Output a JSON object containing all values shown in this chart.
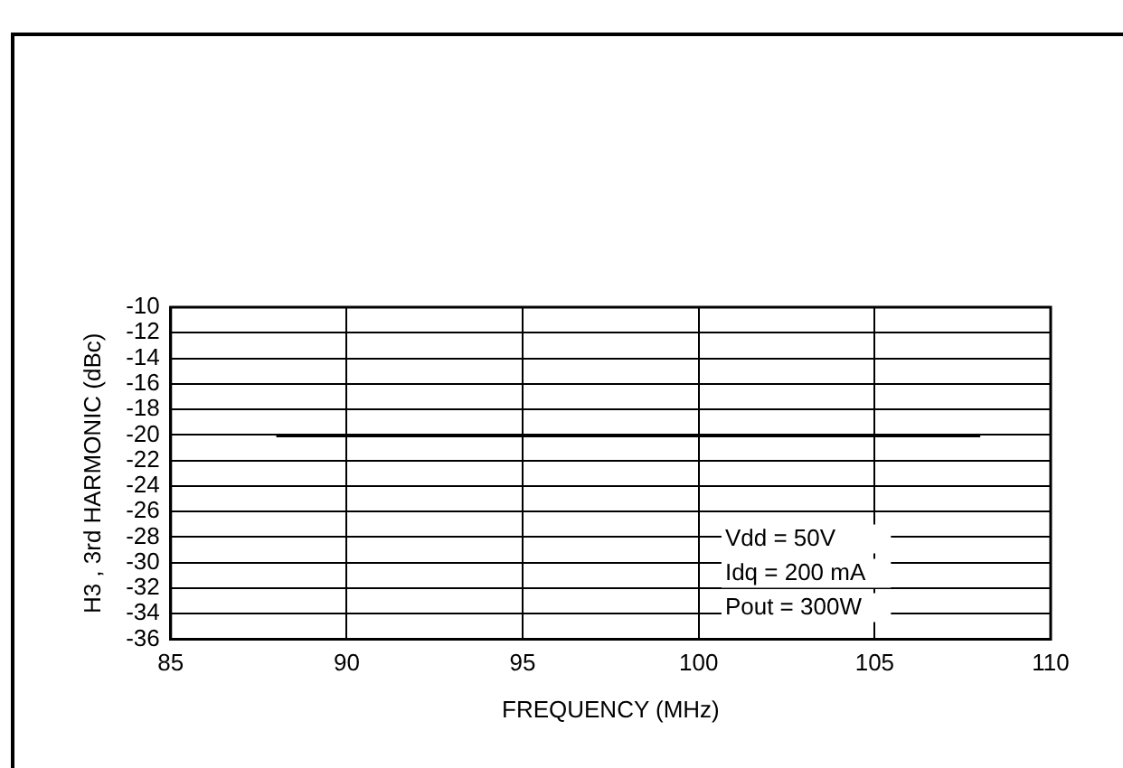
{
  "chart_data": {
    "type": "line",
    "xlabel": "FREQUENCY (MHz)",
    "ylabel": "H3 , 3rd HARMONIC (dBc)",
    "x": [
      88,
      108
    ],
    "series": [
      {
        "color": "#000000",
        "values": [
          -20.1,
          -20.1
        ]
      }
    ],
    "xlim": [
      85,
      110
    ],
    "xticks": [
      85,
      90,
      95,
      100,
      105,
      110
    ],
    "ylim": [
      -36,
      -10
    ],
    "yticks": [
      -36,
      -34,
      -32,
      -30,
      -28,
      -26,
      -24,
      -22,
      -20,
      -18,
      -16,
      -14,
      -12,
      -10
    ],
    "grid": true,
    "legend": false,
    "marker": "none",
    "line_style": "solid",
    "annotations": [
      "Vdd = 50V",
      "Idq = 200 mA",
      "Pout = 300W"
    ]
  }
}
